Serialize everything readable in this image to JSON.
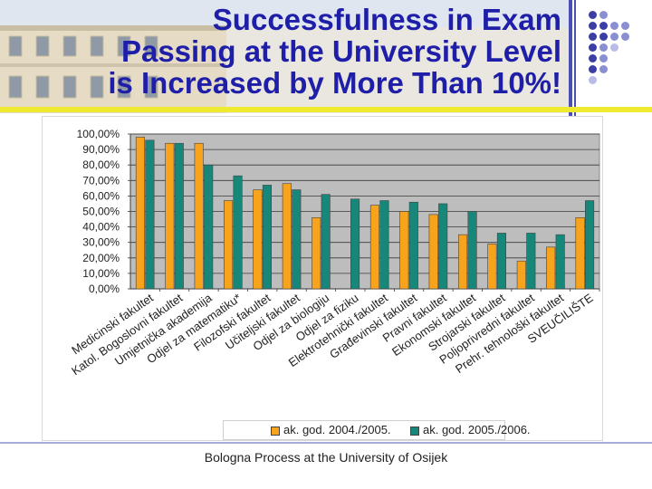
{
  "slide": {
    "title_lines": [
      "Successfulness in Exam",
      "Passing at the University Level",
      "is Increased by More Than 10%!"
    ],
    "footer": "Bologna Process at the University of Osijek"
  },
  "colors": {
    "title": "#1e1ea8",
    "accent_line": "#4a4fb4",
    "yellow_line": "#eeea30",
    "series1": "#f7a31c",
    "series2": "#17877a",
    "plot_bg": "#bdbdbd"
  },
  "chart_data": {
    "type": "bar",
    "title": "",
    "xlabel": "",
    "ylabel": "",
    "ylim": [
      0,
      100
    ],
    "yticks": [
      "0,00%",
      "10,00%",
      "20,00%",
      "30,00%",
      "40,00%",
      "50,00%",
      "60,00%",
      "70,00%",
      "80,00%",
      "90,00%",
      "100,00%"
    ],
    "categories": [
      "Medicinski fakultet",
      "Katol. Bogoslovni fakultet",
      "Umjetnička akademija",
      "Odjel za matematiku*",
      "Filozofski fakultet",
      "Učiteljski fakultet",
      "Odjel za biologiju",
      "Odjel za fiziku",
      "Elektrotehnički fakultet",
      "Građevinski fakultet",
      "Pravni fakultet",
      "Ekonomski fakultet",
      "Strojarski fakultet",
      "Poljoprivredni fakultet",
      "Prehr. tehnološki fakultet",
      "SVEUČILIŠTE"
    ],
    "series": [
      {
        "name": "ak. god. 2004./2005.",
        "values": [
          98,
          94,
          94,
          57,
          64,
          68,
          46,
          null,
          54,
          50,
          48,
          35,
          29,
          18,
          27,
          46
        ]
      },
      {
        "name": "ak. god. 2005./2006.",
        "values": [
          96,
          94,
          80,
          73,
          67,
          64,
          61,
          58,
          57,
          56,
          55,
          50,
          36,
          36,
          35,
          57
        ]
      }
    ],
    "grid": true,
    "legend_position": "bottom"
  }
}
